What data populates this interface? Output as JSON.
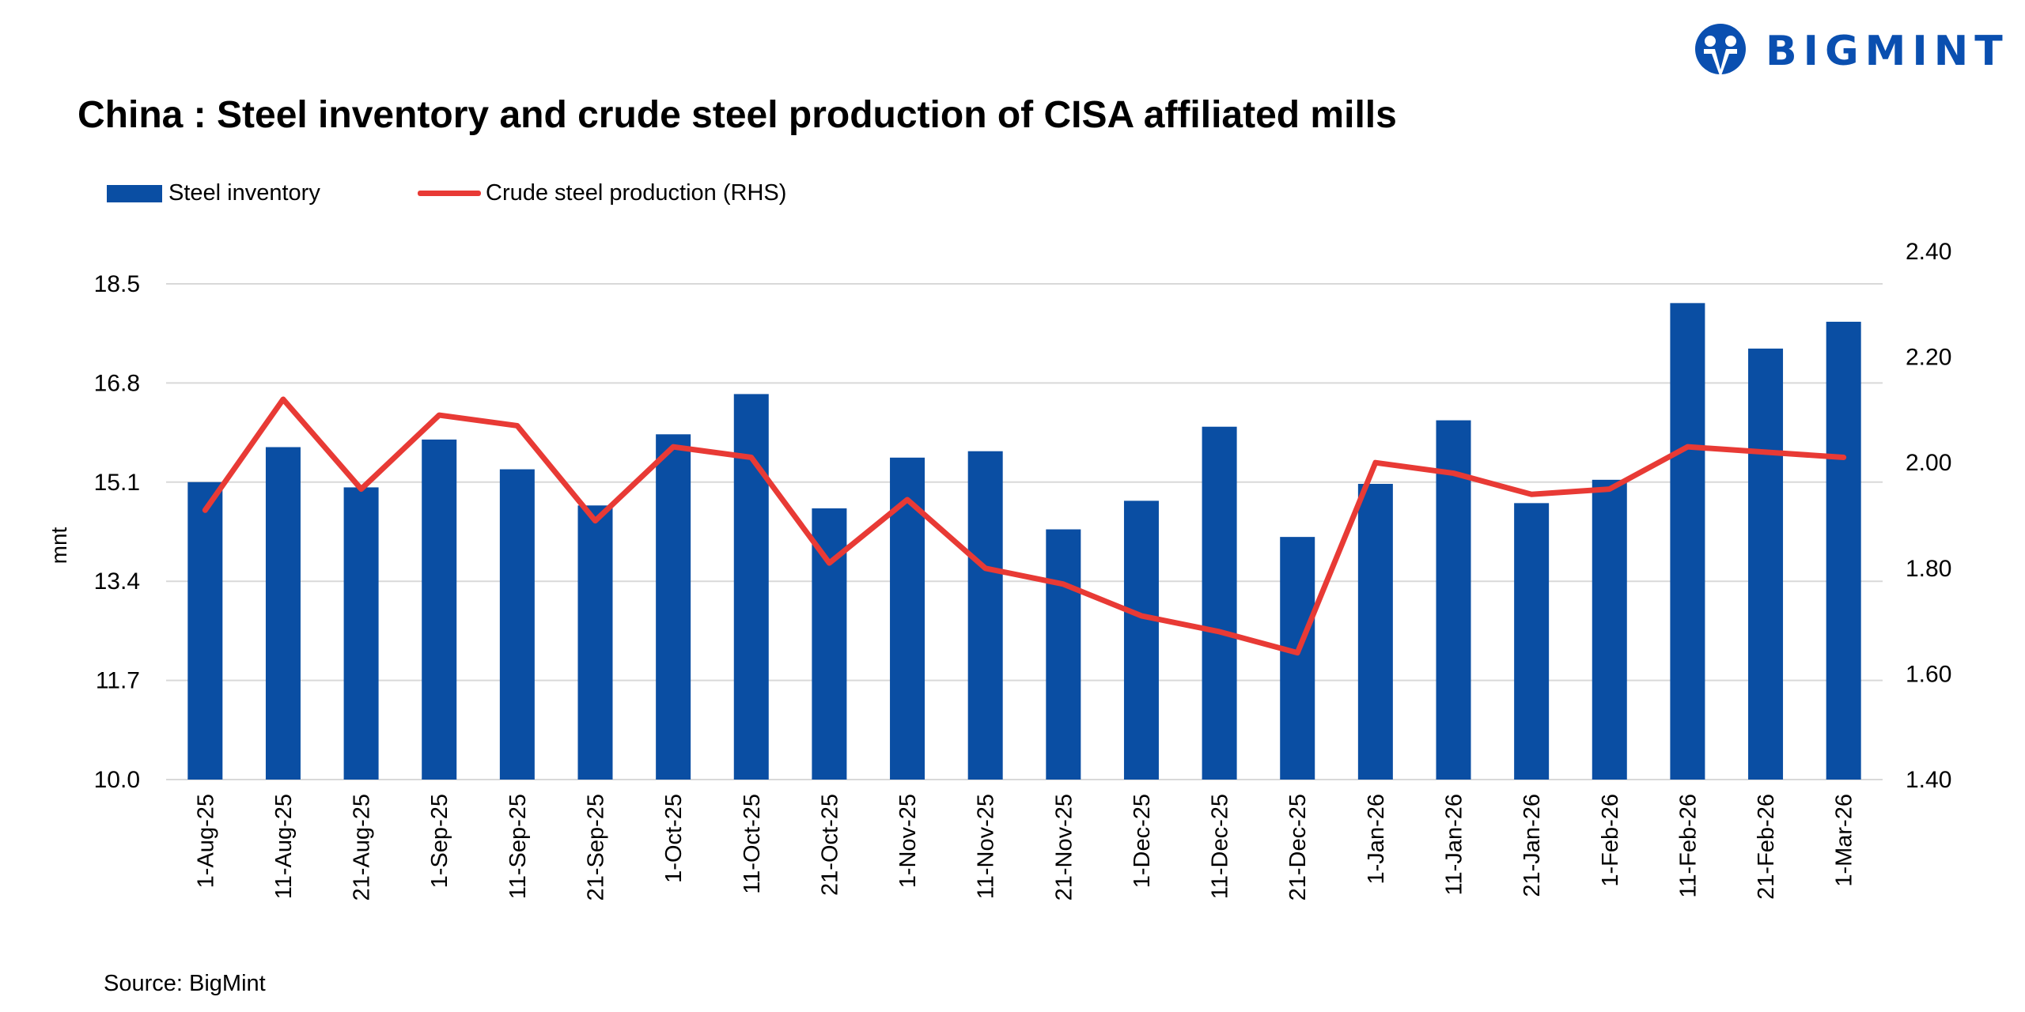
{
  "header": {
    "title": "China : Steel inventory and crude steel production of CISA affiliated mills",
    "logo_text": "BIGMINT",
    "brand_color": "#0a4fb0"
  },
  "footer": {
    "source": "Source: BigMint"
  },
  "chart_data": {
    "type": "bar+line",
    "title": "China : Steel inventory and crude steel production of CISA affiliated mills",
    "ylabel": "mnt",
    "ylim": [
      10.0,
      18.5
    ],
    "yticks": [
      "10.0",
      "11.7",
      "13.4",
      "15.1",
      "16.8",
      "18.5"
    ],
    "y2lim": [
      1.4,
      2.4
    ],
    "y2ticks": [
      "1.40",
      "1.60",
      "1.80",
      "2.00",
      "2.20",
      "2.40"
    ],
    "grid": true,
    "legend_position": "top-left",
    "categories": [
      "1-Aug-25",
      "11-Aug-25",
      "21-Aug-25",
      "1-Sep-25",
      "11-Sep-25",
      "21-Sep-25",
      "1-Oct-25",
      "11-Oct-25",
      "21-Oct-25",
      "1-Nov-25",
      "11-Nov-25",
      "21-Nov-25",
      "1-Dec-25",
      "11-Dec-25",
      "21-Dec-25",
      "1-Jan-26",
      "11-Jan-26",
      "21-Jan-26",
      "1-Feb-26",
      "11-Feb-26",
      "21-Feb-26",
      "1-Mar-26"
    ],
    "series": [
      {
        "name": "Steel inventory",
        "type": "bar",
        "axis": "left",
        "color": "#0a4ea3",
        "values": [
          15.1,
          15.7,
          15.01,
          15.83,
          15.32,
          14.7,
          15.92,
          16.61,
          14.65,
          15.52,
          15.63,
          14.29,
          14.78,
          16.05,
          14.16,
          15.07,
          16.16,
          14.74,
          15.14,
          18.17,
          17.39,
          17.85
        ]
      },
      {
        "name": "Crude steel production (RHS)",
        "type": "line",
        "axis": "right",
        "color": "#e83a35",
        "values": [
          1.91,
          2.12,
          1.95,
          2.09,
          2.07,
          1.89,
          2.03,
          2.01,
          1.81,
          1.93,
          1.8,
          1.77,
          1.71,
          1.68,
          1.64,
          2.0,
          1.98,
          1.94,
          1.95,
          2.03,
          2.02,
          2.01
        ]
      }
    ]
  }
}
